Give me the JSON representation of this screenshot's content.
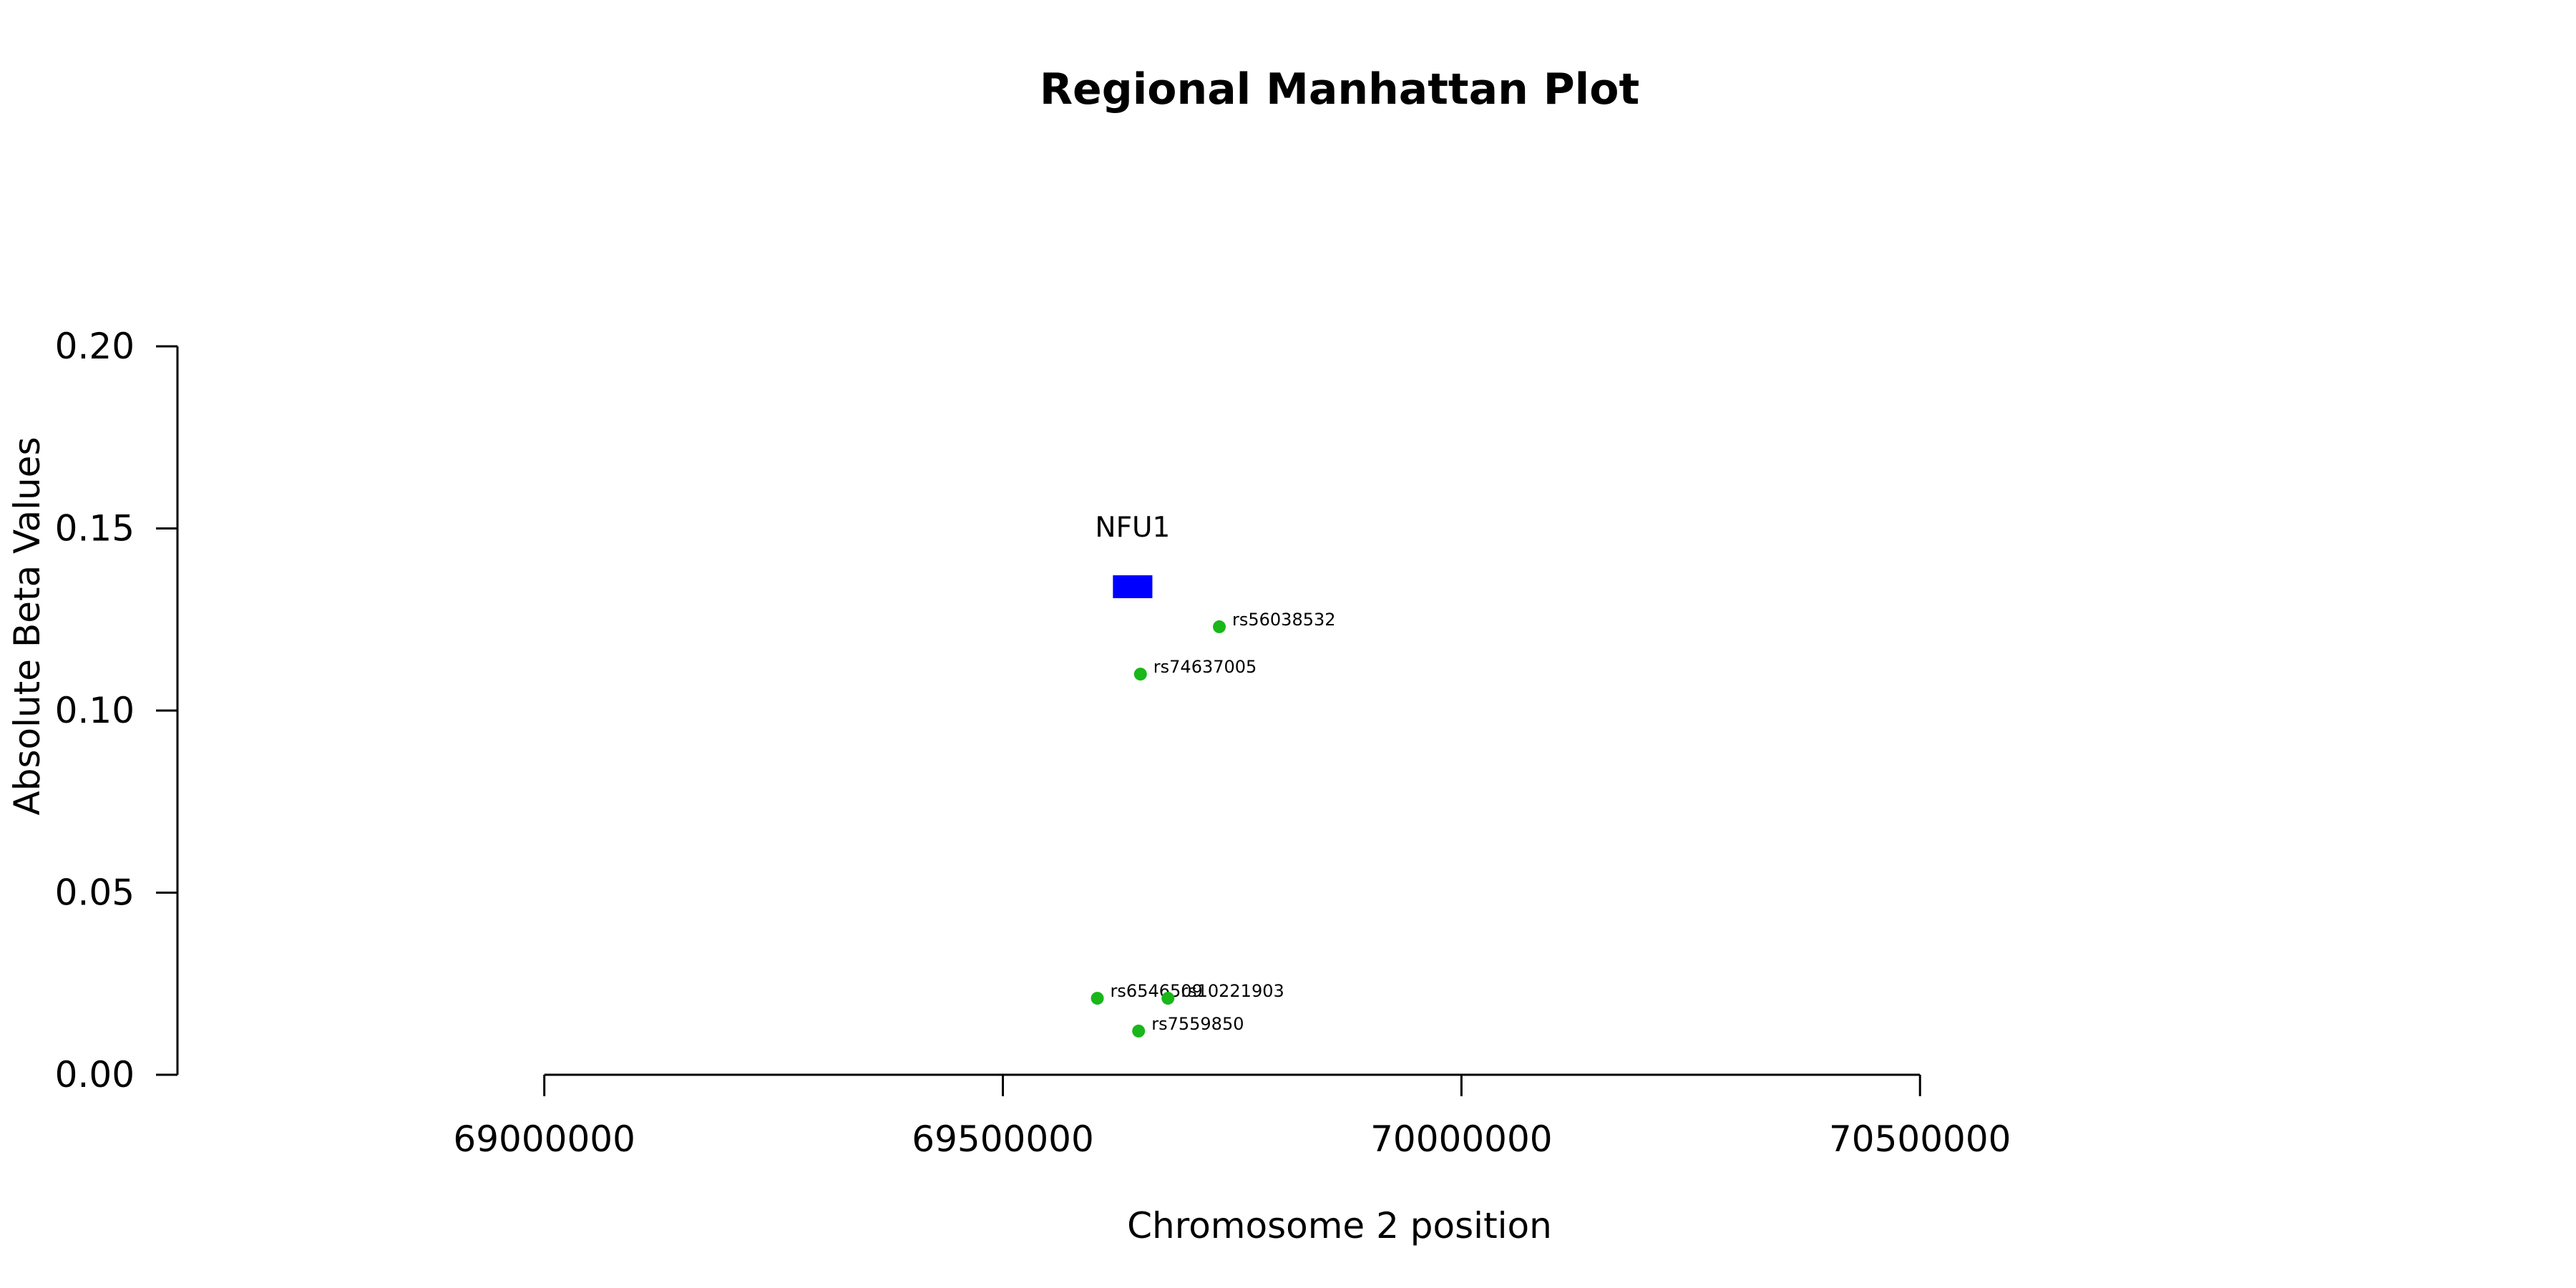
{
  "chart_data": {
    "type": "scatter",
    "title": "Regional Manhattan Plot",
    "xlabel": "Chromosome 2 position",
    "ylabel": "Absolute Beta Values",
    "xticks": [
      "69000000",
      "69500000",
      "70000000",
      "70500000"
    ],
    "yticks": [
      "0.00",
      "0.05",
      "0.10",
      "0.15",
      "0.20"
    ],
    "xlim": [
      68600000,
      70950000
    ],
    "ylim": [
      0,
      0.2
    ],
    "x_axis_range": [
      69000000,
      70500000
    ],
    "grid": false,
    "colors": {
      "snp": "#19b719",
      "gene": "#0000ff",
      "axis": "#000000"
    },
    "genes": [
      {
        "name": "NFU1",
        "start": 69620000,
        "end": 69663000,
        "y": 0.134
      }
    ],
    "series": [
      {
        "points": [
          {
            "label": "rs56038532",
            "x": 69736000,
            "y": 0.123
          },
          {
            "label": "rs74637005",
            "x": 69650000,
            "y": 0.11
          },
          {
            "label": "rs6546509",
            "x": 69603000,
            "y": 0.021
          },
          {
            "label": "rs10221903",
            "x": 69680000,
            "y": 0.021
          },
          {
            "label": "rs7559850",
            "x": 69648000,
            "y": 0.012
          }
        ]
      }
    ]
  }
}
